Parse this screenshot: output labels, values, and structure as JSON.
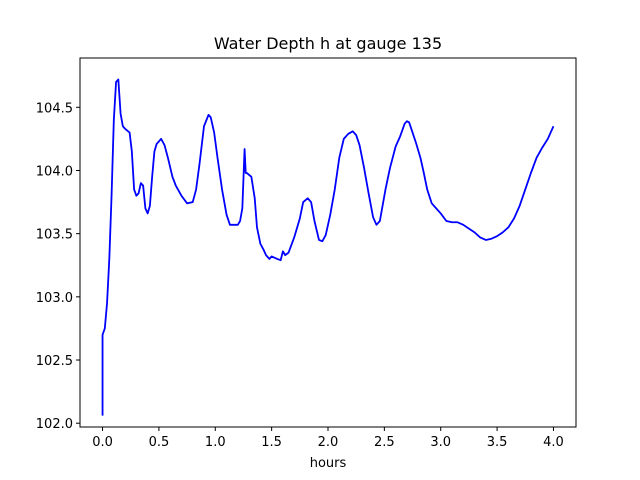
{
  "chart_data": {
    "type": "line",
    "title": "Water Depth h at gauge 135",
    "xlabel": "hours",
    "ylabel": "",
    "xlim": [
      -0.2,
      4.2
    ],
    "ylim": [
      101.97,
      104.89
    ],
    "xticks": [
      "0.0",
      "0.5",
      "1.0",
      "1.5",
      "2.0",
      "2.5",
      "3.0",
      "3.5",
      "4.0"
    ],
    "yticks": [
      "102.0",
      "102.5",
      "103.0",
      "103.5",
      "104.0",
      "104.5"
    ],
    "grid": false,
    "line_color": "#0000ff",
    "series": [
      {
        "x": [
          0.0,
          0.0,
          0.02,
          0.04,
          0.06,
          0.08,
          0.1,
          0.12,
          0.14,
          0.16,
          0.18,
          0.2,
          0.24,
          0.26,
          0.28,
          0.3,
          0.32,
          0.34,
          0.36,
          0.38,
          0.4,
          0.42,
          0.44,
          0.46,
          0.48,
          0.5,
          0.52,
          0.55,
          0.58,
          0.62,
          0.65,
          0.7,
          0.75,
          0.8,
          0.83,
          0.86,
          0.9,
          0.94,
          0.96,
          0.99,
          1.02,
          1.06,
          1.1,
          1.13,
          1.16,
          1.2,
          1.22,
          1.24,
          1.26,
          1.27,
          1.28,
          1.32,
          1.35,
          1.37,
          1.4,
          1.43,
          1.45,
          1.48,
          1.5,
          1.55,
          1.58,
          1.6,
          1.62,
          1.65,
          1.7,
          1.75,
          1.78,
          1.82,
          1.85,
          1.88,
          1.92,
          1.95,
          1.98,
          2.02,
          2.06,
          2.1,
          2.14,
          2.18,
          2.22,
          2.25,
          2.28,
          2.32,
          2.36,
          2.4,
          2.43,
          2.46,
          2.48,
          2.51,
          2.55,
          2.6,
          2.64,
          2.68,
          2.7,
          2.72,
          2.75,
          2.78,
          2.82,
          2.85,
          2.88,
          2.92,
          2.95,
          3.0,
          3.05,
          3.1,
          3.15,
          3.2,
          3.25,
          3.3,
          3.35,
          3.4,
          3.45,
          3.5,
          3.55,
          3.6,
          3.65,
          3.7,
          3.75,
          3.8,
          3.85,
          3.9,
          3.95,
          4.0
        ],
        "y": [
          102.06,
          102.7,
          102.75,
          102.95,
          103.3,
          103.8,
          104.4,
          104.7,
          104.72,
          104.45,
          104.35,
          104.33,
          104.3,
          104.15,
          103.85,
          103.8,
          103.82,
          103.9,
          103.88,
          103.7,
          103.66,
          103.72,
          103.95,
          104.15,
          104.21,
          104.23,
          104.25,
          104.2,
          104.1,
          103.95,
          103.88,
          103.8,
          103.74,
          103.75,
          103.85,
          104.05,
          104.35,
          104.44,
          104.42,
          104.3,
          104.1,
          103.85,
          103.65,
          103.57,
          103.57,
          103.57,
          103.6,
          103.7,
          104.17,
          103.98,
          103.98,
          103.95,
          103.78,
          103.55,
          103.42,
          103.37,
          103.33,
          103.3,
          103.32,
          103.3,
          103.29,
          103.36,
          103.33,
          103.35,
          103.47,
          103.62,
          103.75,
          103.78,
          103.75,
          103.6,
          103.45,
          103.44,
          103.49,
          103.65,
          103.85,
          104.1,
          104.25,
          104.29,
          104.31,
          104.28,
          104.2,
          104.02,
          103.82,
          103.63,
          103.57,
          103.6,
          103.7,
          103.85,
          104.02,
          104.19,
          104.27,
          104.37,
          104.39,
          104.38,
          104.3,
          104.22,
          104.1,
          103.98,
          103.85,
          103.74,
          103.71,
          103.66,
          103.6,
          103.59,
          103.59,
          103.57,
          103.54,
          103.51,
          103.47,
          103.45,
          103.46,
          103.48,
          103.51,
          103.55,
          103.62,
          103.72,
          103.85,
          103.98,
          104.1,
          104.18,
          104.25,
          104.35
        ]
      }
    ]
  }
}
